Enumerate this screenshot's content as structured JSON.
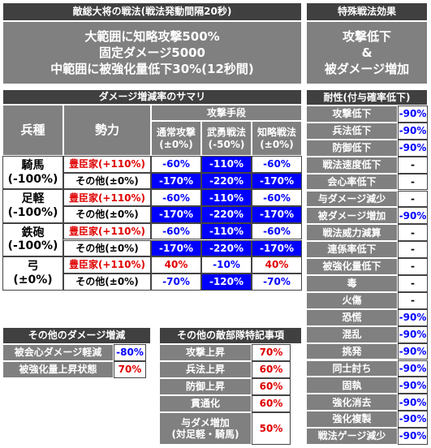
{
  "enemy_tactic": {
    "title": "敵総大将の戦法(戦法発動間隔20秒)",
    "lines": [
      "大範囲に知略攻撃500%",
      "固定ダメージ5000",
      "中範囲に被強化量低下30%(12秒間)"
    ]
  },
  "special_effect": {
    "title": "特殊戦法効果",
    "lines": [
      "攻撃低下",
      "&",
      "被ダメージ増加"
    ]
  },
  "summary": {
    "title": "ダメージ増減率のサマリ",
    "unit_header": "兵種",
    "faction_header": "勢力",
    "attack_header": "攻撃手段",
    "methods": [
      {
        "name": "通常攻撃",
        "mod": "(±0%)"
      },
      {
        "name": "武勇戦法",
        "mod": "(-50%)"
      },
      {
        "name": "知略戦法",
        "mod": "(±0%)"
      }
    ],
    "units": [
      {
        "name": "騎馬",
        "mod": "(-100%)",
        "rows": [
          {
            "faction": "豊臣家(+110%)",
            "values": [
              "-60%",
              "-110%",
              "-60%"
            ]
          },
          {
            "faction": "その他(±0%)",
            "values": [
              "-170%",
              "-220%",
              "-170%"
            ]
          }
        ]
      },
      {
        "name": "足軽",
        "mod": "(-100%)",
        "rows": [
          {
            "faction": "豊臣家(+110%)",
            "values": [
              "-60%",
              "-110%",
              "-60%"
            ]
          },
          {
            "faction": "その他(±0%)",
            "values": [
              "-170%",
              "-220%",
              "-170%"
            ]
          }
        ]
      },
      {
        "name": "鉄砲",
        "mod": "(-100%)",
        "rows": [
          {
            "faction": "豊臣家(+110%)",
            "values": [
              "-60%",
              "-110%",
              "-60%"
            ]
          },
          {
            "faction": "その他(±0%)",
            "values": [
              "-170%",
              "-220%",
              "-170%"
            ]
          }
        ]
      },
      {
        "name": "弓",
        "mod": "(±0%)",
        "rows": [
          {
            "faction": "豊臣家(+110%)",
            "values": [
              "40%",
              "-10%",
              "40%"
            ]
          },
          {
            "faction": "その他(±0%)",
            "values": [
              "-70%",
              "-120%",
              "-70%"
            ]
          }
        ]
      }
    ]
  },
  "resistance": {
    "title": "耐性(付与確率低下)",
    "rows": [
      [
        "攻撃低下",
        "-90%"
      ],
      [
        "兵法低下",
        "-90%"
      ],
      [
        "防御低下",
        "-90%"
      ],
      [
        "戦法速度低下",
        "-"
      ],
      [
        "会心率低下",
        "-"
      ],
      [
        "与ダメージ減少",
        "-"
      ],
      [
        "被ダメージ増加",
        "-90%"
      ],
      [
        "戦法威力減算",
        "-"
      ],
      [
        "連係率低下",
        "-"
      ],
      [
        "被強化量低下",
        "-"
      ],
      [
        "毒",
        "-"
      ],
      [
        "火傷",
        "-"
      ],
      [
        "恐慌",
        "-90%"
      ],
      [
        "混乱",
        "-90%"
      ],
      [
        "挑発",
        "-90%"
      ],
      [
        "同士討ち",
        "-90%"
      ],
      [
        "固執",
        "-90%"
      ],
      [
        "強化消去",
        "-90%"
      ],
      [
        "強化複製",
        "-90%"
      ],
      [
        "戦法ゲージ減少",
        "-90%"
      ]
    ]
  },
  "other_damage": {
    "title": "その他のダメージ増減",
    "rows": [
      [
        "被会心ダメージ軽減",
        "-80%"
      ],
      [
        "被強化量上昇状態",
        "70%"
      ]
    ]
  },
  "other_notes": {
    "title": "その他の敵部隊特記事項",
    "rows": [
      [
        [
          "攻撃上昇"
        ],
        "70%"
      ],
      [
        [
          "兵法上昇"
        ],
        "60%"
      ],
      [
        [
          "防御上昇"
        ],
        "60%"
      ],
      [
        [
          "貫通化"
        ],
        "60%"
      ],
      [
        [
          "与ダメ増加",
          "(対足軽・騎馬)"
        ],
        "50%"
      ]
    ]
  }
}
